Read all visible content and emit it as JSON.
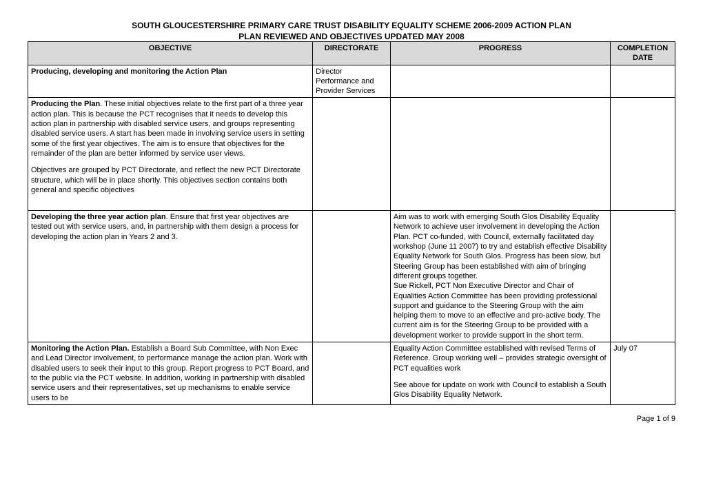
{
  "title": "SOUTH GLOUCESTERSHIRE PRIMARY CARE TRUST DISABILITY EQUALITY SCHEME 2006-2009 ACTION PLAN",
  "subtitle": "PLAN REVIEWED AND OBJECTIVES UPDATED MAY 2008",
  "columns": {
    "objective": "OBJECTIVE",
    "directorate": "DIRECTORATE",
    "progress": "PROGRESS",
    "completion": "COMPLETION DATE"
  },
  "rows": [
    {
      "objective_bold": "Producing, developing and monitoring the Action Plan",
      "objective_rest": "",
      "directorate": "Director Performance and Provider Services",
      "progress": "",
      "completion": ""
    },
    {
      "objective_bold": "Producing the Plan",
      "objective_rest": ". These initial objectives relate to the first part of a three year action plan. This is because the PCT recognises that it needs to develop this action plan in partnership with disabled service users, and groups representing disabled service users. A start has been made in involving service users in setting some of the first year objectives. The aim is to ensure that objectives for the remainder of the plan are better informed by service user views.",
      "objective_para2": "Objectives are grouped by PCT Directorate, and reflect the new PCT Directorate structure, which will be in place shortly. This objectives section contains both general and specific objectives",
      "directorate": "",
      "progress": "",
      "completion": ""
    },
    {
      "objective_bold": "Developing the three year action plan",
      "objective_rest": ". Ensure that first year objectives are tested out with service users, and, in partnership with them design a process for developing the action plan in Years 2 and 3.",
      "directorate": "",
      "progress_p1": "Aim was to work with emerging South Glos Disability Equality Network to achieve user involvement in developing the Action Plan. PCT co-funded, with Council, externally facilitated day workshop (June 11 2007) to try and establish effective Disability Equality Network for South Glos. Progress has been slow, but Steering Group has been established with aim of bringing different groups together.",
      "progress_p2": "Sue Rickell, PCT Non Executive Director and Chair of Equalities Action Committee has been providing professional support and guidance to the Steering Group with the aim helping them to move to an effective and pro-active body. The current aim is for the Steering Group to be provided with a development worker to provide support in the short term.",
      "completion": ""
    },
    {
      "objective_bold": "Monitoring the Action Plan.",
      "objective_rest": " Establish a Board Sub Committee, with Non Exec and Lead Director involvement, to performance manage the action plan. Work with disabled users to seek their input to this group. Report progress to PCT Board, and to the public via the PCT website. In addition, working in partnership with disabled service users and their representatives, set up mechanisms to enable service users to be",
      "directorate": "",
      "progress_p1": "Equality Action Committee established with revised Terms of Reference. Group working well – provides strategic oversight of PCT equalities work",
      "progress_p2": "See above for update on work with Council to establish a South Glos Disability Equality Network.",
      "completion": "July 07"
    }
  ],
  "footer": "Page 1 of 9"
}
